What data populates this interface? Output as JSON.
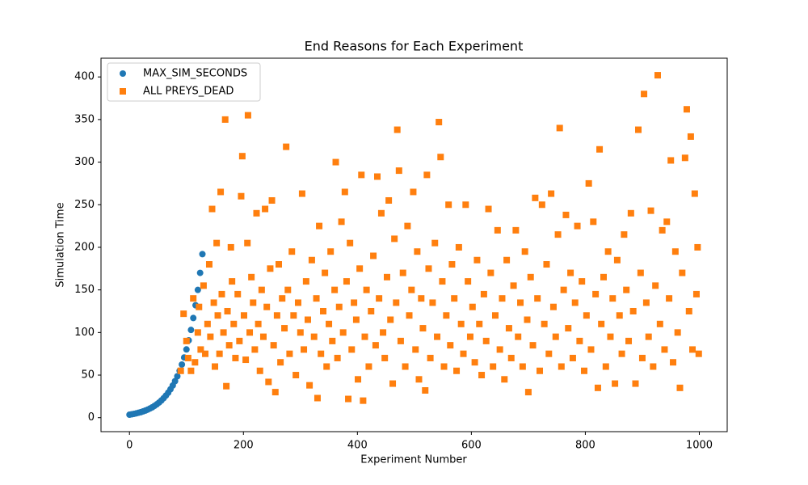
{
  "chart_data": {
    "type": "scatter",
    "title": "End Reasons for Each Experiment",
    "x_label": "Experiment Number",
    "y_label": "Simulation Time",
    "xlim": [
      -49.95,
      1048.95
    ],
    "ylim": [
      -16.4,
      422
    ],
    "xticks": [
      0,
      200,
      400,
      600,
      800,
      1000
    ],
    "yticks": [
      0,
      50,
      100,
      150,
      200,
      250,
      300,
      350,
      400
    ],
    "grid": false,
    "legend": "upper left",
    "series": [
      {
        "name": "MAX_SIM_SECONDS",
        "color": "#1f77b4",
        "marker": "circle",
        "x": [
          0,
          4,
          8,
          12,
          16,
          20,
          24,
          28,
          32,
          36,
          40,
          44,
          48,
          52,
          56,
          60,
          64,
          68,
          72,
          76,
          80,
          84,
          88,
          92,
          96,
          100,
          104,
          108,
          112,
          116,
          120,
          124,
          128
        ],
        "values": [
          3.5,
          4.0,
          4.5,
          5.1,
          5.8,
          6.5,
          7.4,
          8.4,
          9.5,
          10.8,
          12.2,
          13.9,
          15.7,
          17.8,
          20.2,
          22.9,
          26.0,
          29.4,
          33.4,
          37.8,
          42.9,
          48.6,
          55.1,
          62.4,
          70.7,
          80.1,
          90.8,
          103,
          117,
          132,
          150,
          170,
          192
        ]
      },
      {
        "name": "ALL PREYS_DEAD",
        "color": "#ff7f0e",
        "marker": "square",
        "x": [
          90,
          95,
          100,
          103,
          108,
          112,
          115,
          120,
          122,
          125,
          130,
          133,
          137,
          140,
          142,
          145,
          148,
          150,
          153,
          155,
          158,
          160,
          162,
          165,
          168,
          170,
          172,
          175,
          178,
          180,
          183,
          186,
          190,
          193,
          196,
          198,
          201,
          204,
          207,
          208,
          211,
          214,
          217,
          220,
          223,
          226,
          229,
          232,
          235,
          238,
          241,
          244,
          247,
          250,
          253,
          256,
          259,
          262,
          265,
          268,
          272,
          275,
          278,
          281,
          285,
          288,
          292,
          296,
          300,
          303,
          306,
          310,
          313,
          316,
          320,
          324,
          328,
          330,
          333,
          336,
          340,
          343,
          346,
          350,
          353,
          356,
          360,
          362,
          365,
          368,
          372,
          375,
          378,
          381,
          384,
          387,
          390,
          394,
          398,
          401,
          404,
          407,
          410,
          413,
          416,
          420,
          424,
          428,
          432,
          435,
          438,
          442,
          445,
          448,
          452,
          455,
          458,
          462,
          465,
          468,
          470,
          473,
          476,
          480,
          484,
          488,
          491,
          495,
          498,
          502,
          505,
          508,
          512,
          515,
          519,
          522,
          525,
          528,
          532,
          536,
          540,
          543,
          546,
          549,
          552,
          556,
          560,
          563,
          566,
          570,
          574,
          578,
          582,
          586,
          590,
          594,
          598,
          602,
          606,
          610,
          614,
          618,
          622,
          626,
          630,
          634,
          638,
          642,
          646,
          650,
          654,
          658,
          662,
          666,
          670,
          674,
          678,
          682,
          686,
          690,
          694,
          698,
          700,
          704,
          708,
          712,
          716,
          720,
          724,
          728,
          732,
          736,
          740,
          744,
          748,
          752,
          755,
          758,
          762,
          766,
          770,
          774,
          778,
          782,
          786,
          790,
          794,
          798,
          802,
          806,
          810,
          814,
          818,
          822,
          825,
          828,
          832,
          836,
          840,
          844,
          848,
          852,
          856,
          860,
          864,
          868,
          872,
          876,
          880,
          884,
          888,
          893,
          897,
          900,
          903,
          907,
          911,
          915,
          919,
          923,
          927,
          931,
          935,
          939,
          943,
          947,
          950,
          954,
          958,
          962,
          966,
          970,
          975,
          978,
          982,
          985,
          988,
          992,
          995,
          997,
          999
        ],
        "values": [
          55,
          122,
          90,
          70,
          55,
          140,
          65,
          100,
          130,
          80,
          155,
          75,
          110,
          180,
          95,
          245,
          135,
          60,
          205,
          120,
          75,
          265,
          145,
          100,
          350,
          37,
          125,
          85,
          200,
          160,
          110,
          70,
          145,
          90,
          260,
          307,
          120,
          68,
          205,
          355,
          100,
          165,
          135,
          80,
          240,
          110,
          55,
          150,
          95,
          245,
          130,
          42,
          175,
          255,
          85,
          30,
          120,
          180,
          65,
          140,
          105,
          318,
          150,
          75,
          195,
          120,
          50,
          135,
          100,
          263,
          80,
          160,
          115,
          38,
          185,
          95,
          140,
          23,
          225,
          75,
          125,
          170,
          60,
          110,
          195,
          90,
          150,
          300,
          70,
          130,
          230,
          100,
          265,
          160,
          22,
          205,
          80,
          135,
          115,
          45,
          175,
          285,
          20,
          95,
          150,
          60,
          125,
          190,
          85,
          283,
          140,
          240,
          100,
          70,
          165,
          255,
          115,
          40,
          210,
          135,
          338,
          290,
          90,
          170,
          60,
          225,
          120,
          150,
          265,
          80,
          195,
          45,
          140,
          105,
          32,
          285,
          175,
          70,
          135,
          205,
          95,
          347,
          306,
          160,
          60,
          120,
          250,
          85,
          180,
          140,
          55,
          200,
          110,
          75,
          250,
          160,
          95,
          130,
          65,
          185,
          110,
          50,
          145,
          90,
          245,
          170,
          60,
          120,
          220,
          80,
          140,
          45,
          185,
          105,
          70,
          155,
          220,
          95,
          135,
          60,
          195,
          115,
          30,
          165,
          85,
          258,
          140,
          55,
          250,
          110,
          180,
          75,
          263,
          130,
          95,
          215,
          340,
          60,
          150,
          238,
          105,
          170,
          70,
          135,
          225,
          90,
          160,
          55,
          120,
          275,
          80,
          230,
          145,
          35,
          315,
          110,
          165,
          60,
          195,
          95,
          140,
          40,
          185,
          120,
          75,
          215,
          150,
          90,
          240,
          125,
          40,
          338,
          170,
          70,
          380,
          135,
          95,
          243,
          60,
          155,
          402,
          110,
          220,
          80,
          230,
          140,
          302,
          65,
          195,
          100,
          35,
          170,
          305,
          362,
          125,
          330,
          80,
          263,
          145,
          200,
          75
        ]
      }
    ]
  }
}
